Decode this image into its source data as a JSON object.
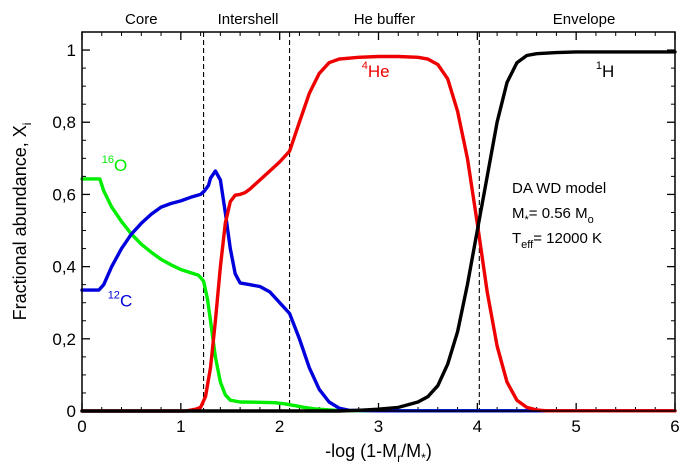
{
  "chart_data": {
    "type": "line",
    "xlabel_parts": [
      "-log (1-M",
      "r",
      "/M",
      "*",
      ")"
    ],
    "ylabel_parts": [
      "Fractional abundance, X",
      "i"
    ],
    "xlim": [
      0,
      6
    ],
    "ylim": [
      0,
      1.05
    ],
    "x_ticks": [
      {
        "v": 0,
        "label": "0"
      },
      {
        "v": 1,
        "label": "1"
      },
      {
        "v": 2,
        "label": "2"
      },
      {
        "v": 3,
        "label": "3"
      },
      {
        "v": 4,
        "label": "4"
      },
      {
        "v": 5,
        "label": "5"
      },
      {
        "v": 6,
        "label": "6"
      }
    ],
    "y_ticks": [
      {
        "v": 0,
        "label": "0"
      },
      {
        "v": 0.2,
        "label": "0,2"
      },
      {
        "v": 0.4,
        "label": "0,4"
      },
      {
        "v": 0.6,
        "label": "0,6"
      },
      {
        "v": 0.8,
        "label": "0,8"
      },
      {
        "v": 1.0,
        "label": "1"
      }
    ],
    "boundaries": [
      1.23,
      2.1,
      4.02
    ],
    "regions": [
      {
        "label": "Core",
        "x": 0.6
      },
      {
        "label": "Intershell",
        "x": 1.68
      },
      {
        "label": "He buffer",
        "x": 3.06
      },
      {
        "label": "Envelope",
        "x": 5.08
      }
    ],
    "series": [
      {
        "sup": "16",
        "base": "O",
        "color": "#00ee00",
        "label_x": 0.2,
        "label_y": 0.665,
        "points": [
          [
            0,
            0.643
          ],
          [
            0.18,
            0.643
          ],
          [
            0.22,
            0.61
          ],
          [
            0.3,
            0.565
          ],
          [
            0.4,
            0.525
          ],
          [
            0.5,
            0.49
          ],
          [
            0.6,
            0.462
          ],
          [
            0.7,
            0.44
          ],
          [
            0.8,
            0.42
          ],
          [
            0.9,
            0.405
          ],
          [
            1.0,
            0.392
          ],
          [
            1.1,
            0.383
          ],
          [
            1.18,
            0.376
          ],
          [
            1.23,
            0.36
          ],
          [
            1.27,
            0.31
          ],
          [
            1.3,
            0.25
          ],
          [
            1.35,
            0.15
          ],
          [
            1.4,
            0.08
          ],
          [
            1.45,
            0.045
          ],
          [
            1.5,
            0.03
          ],
          [
            1.6,
            0.025
          ],
          [
            1.8,
            0.024
          ],
          [
            1.95,
            0.023
          ],
          [
            2.05,
            0.02
          ],
          [
            2.15,
            0.015
          ],
          [
            2.25,
            0.01
          ],
          [
            2.35,
            0.006
          ],
          [
            2.5,
            0.003
          ],
          [
            2.6,
            0.001
          ],
          [
            3.0,
            0.0005
          ],
          [
            6.0,
            0.0005
          ]
        ]
      },
      {
        "sup": "12",
        "base": "C",
        "color": "#0000dd",
        "label_x": 0.26,
        "label_y": 0.29,
        "points": [
          [
            0,
            0.335
          ],
          [
            0.17,
            0.335
          ],
          [
            0.22,
            0.35
          ],
          [
            0.3,
            0.4
          ],
          [
            0.4,
            0.45
          ],
          [
            0.5,
            0.49
          ],
          [
            0.6,
            0.52
          ],
          [
            0.7,
            0.545
          ],
          [
            0.8,
            0.565
          ],
          [
            0.9,
            0.575
          ],
          [
            1.0,
            0.582
          ],
          [
            1.1,
            0.592
          ],
          [
            1.2,
            0.6
          ],
          [
            1.24,
            0.61
          ],
          [
            1.28,
            0.625
          ],
          [
            1.3,
            0.645
          ],
          [
            1.35,
            0.665
          ],
          [
            1.4,
            0.64
          ],
          [
            1.45,
            0.55
          ],
          [
            1.5,
            0.45
          ],
          [
            1.55,
            0.38
          ],
          [
            1.6,
            0.355
          ],
          [
            1.7,
            0.35
          ],
          [
            1.8,
            0.345
          ],
          [
            1.9,
            0.33
          ],
          [
            2.0,
            0.3
          ],
          [
            2.1,
            0.27
          ],
          [
            2.2,
            0.2
          ],
          [
            2.3,
            0.12
          ],
          [
            2.4,
            0.06
          ],
          [
            2.5,
            0.025
          ],
          [
            2.6,
            0.008
          ],
          [
            2.7,
            0.002
          ],
          [
            3.0,
            0.0005
          ],
          [
            6.0,
            0.0005
          ]
        ]
      },
      {
        "sup": "4",
        "base": "He",
        "color": "#ee0000",
        "label_x": 2.83,
        "label_y": 0.925,
        "points": [
          [
            0,
            0
          ],
          [
            1.05,
            0
          ],
          [
            1.15,
            0.005
          ],
          [
            1.2,
            0.01
          ],
          [
            1.25,
            0.04
          ],
          [
            1.3,
            0.12
          ],
          [
            1.35,
            0.25
          ],
          [
            1.4,
            0.4
          ],
          [
            1.45,
            0.52
          ],
          [
            1.5,
            0.58
          ],
          [
            1.55,
            0.598
          ],
          [
            1.6,
            0.6
          ],
          [
            1.65,
            0.605
          ],
          [
            1.7,
            0.615
          ],
          [
            1.8,
            0.64
          ],
          [
            1.9,
            0.665
          ],
          [
            2.0,
            0.69
          ],
          [
            2.1,
            0.72
          ],
          [
            2.2,
            0.8
          ],
          [
            2.3,
            0.88
          ],
          [
            2.4,
            0.935
          ],
          [
            2.5,
            0.965
          ],
          [
            2.6,
            0.975
          ],
          [
            2.8,
            0.98
          ],
          [
            3.0,
            0.982
          ],
          [
            3.2,
            0.982
          ],
          [
            3.4,
            0.98
          ],
          [
            3.5,
            0.975
          ],
          [
            3.6,
            0.96
          ],
          [
            3.7,
            0.92
          ],
          [
            3.8,
            0.83
          ],
          [
            3.9,
            0.7
          ],
          [
            4.0,
            0.52
          ],
          [
            4.1,
            0.33
          ],
          [
            4.2,
            0.18
          ],
          [
            4.3,
            0.08
          ],
          [
            4.4,
            0.03
          ],
          [
            4.5,
            0.01
          ],
          [
            4.6,
            0.003
          ],
          [
            4.7,
            0.0005
          ],
          [
            6.0,
            0.0005
          ]
        ]
      },
      {
        "sup": "1",
        "base": "H",
        "color": "#000000",
        "label_x": 5.2,
        "label_y": 0.925,
        "points": [
          [
            0,
            0
          ],
          [
            2.6,
            0
          ],
          [
            2.8,
            0.002
          ],
          [
            3.0,
            0.005
          ],
          [
            3.2,
            0.01
          ],
          [
            3.4,
            0.025
          ],
          [
            3.5,
            0.04
          ],
          [
            3.6,
            0.07
          ],
          [
            3.7,
            0.13
          ],
          [
            3.8,
            0.22
          ],
          [
            3.9,
            0.35
          ],
          [
            4.0,
            0.5
          ],
          [
            4.1,
            0.65
          ],
          [
            4.2,
            0.8
          ],
          [
            4.3,
            0.91
          ],
          [
            4.4,
            0.965
          ],
          [
            4.5,
            0.985
          ],
          [
            4.6,
            0.99
          ],
          [
            4.8,
            0.993
          ],
          [
            5.0,
            0.995
          ],
          [
            6.0,
            0.995
          ]
        ]
      }
    ],
    "annotation_lines": [
      {
        "parts": [
          {
            "t": "DA WD model"
          }
        ]
      },
      {
        "parts": [
          {
            "t": "M"
          },
          {
            "t": "*",
            "sub": true
          },
          {
            "t": "= 0.56 M"
          },
          {
            "t": "o",
            "sub": true
          }
        ]
      },
      {
        "parts": [
          {
            "t": "T"
          },
          {
            "t": "eff",
            "sub": true
          },
          {
            "t": "= 12000 K"
          }
        ]
      }
    ]
  }
}
